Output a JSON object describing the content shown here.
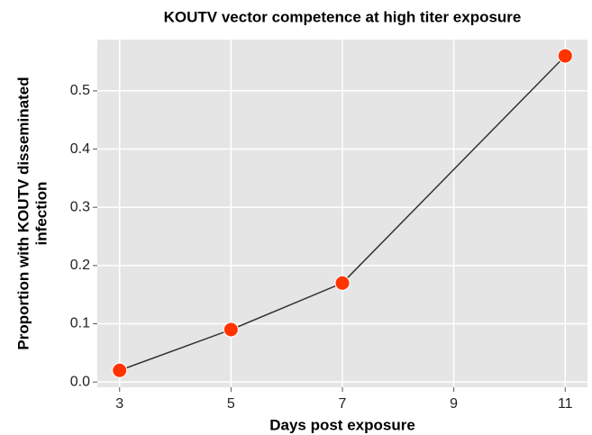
{
  "chart_data": {
    "type": "line",
    "title": "KOUTV vector competence at high titer exposure",
    "xlabel": "Days post exposure",
    "ylabel": [
      "Proportion with KOUTV disseminated",
      "infection"
    ],
    "x": [
      3,
      5,
      7,
      11
    ],
    "series": [
      {
        "name": "KOUTV",
        "color": "#ff3300",
        "line_color": "#333333",
        "values": [
          0.02,
          0.09,
          0.17,
          0.56
        ]
      }
    ],
    "xlim": [
      2.6,
      11.4
    ],
    "xticks": [
      3,
      5,
      7,
      9,
      11
    ],
    "ylim": [
      -0.009,
      0.588
    ],
    "yticks": [
      {
        "value": 0,
        "label": "0.0"
      },
      0.1,
      0.2,
      0.3,
      0.4,
      0.5
    ],
    "grid": true
  }
}
